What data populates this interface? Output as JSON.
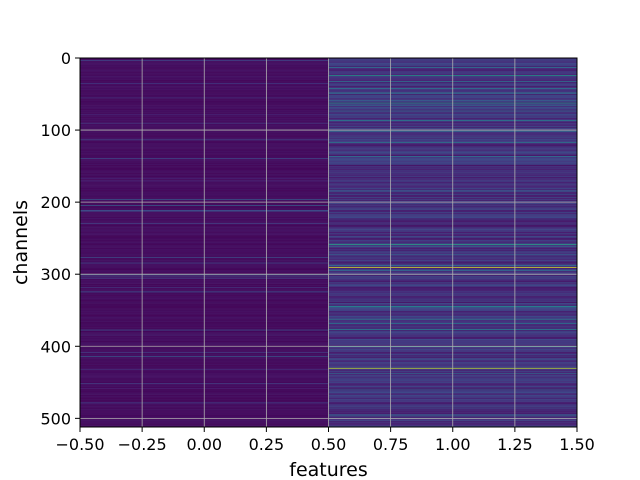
{
  "chart_data": {
    "type": "heatmap",
    "title": "",
    "xlabel": "features",
    "ylabel": "channels",
    "xlim": [
      -0.5,
      1.5
    ],
    "ylim": [
      512,
      0
    ],
    "y_inverted": true,
    "grid": true,
    "colormap": "viridis",
    "columns": [
      0,
      1
    ],
    "rows": 512,
    "xticks": [
      -0.5,
      -0.25,
      0.0,
      0.25,
      0.5,
      0.75,
      1.0,
      1.25,
      1.5
    ],
    "xtick_labels": [
      "−0.50",
      "−0.25",
      "0.00",
      "0.25",
      "0.50",
      "0.75",
      "1.00",
      "1.25",
      "1.50"
    ],
    "yticks": [
      0,
      100,
      200,
      300,
      400,
      500
    ],
    "ytick_labels": [
      "0",
      "100",
      "200",
      "300",
      "400",
      "500"
    ],
    "column_summary": [
      {
        "feature": 0,
        "typical_level": 0.05,
        "note": "uniformly low values, dark purple with faint teal streaks"
      },
      {
        "feature": 1,
        "typical_level": 0.2,
        "note": "stronger variation with several bright channels"
      }
    ],
    "notable_channels": [
      {
        "feature": 1,
        "channel": 24,
        "level": 0.55
      },
      {
        "feature": 1,
        "channel": 62,
        "level": 0.55
      },
      {
        "feature": 1,
        "channel": 86,
        "level": 0.45
      },
      {
        "feature": 1,
        "channel": 258,
        "level": 0.6
      },
      {
        "feature": 1,
        "channel": 290,
        "level": 0.95
      },
      {
        "feature": 1,
        "channel": 400,
        "level": 0.45
      },
      {
        "feature": 1,
        "channel": 430,
        "level": 0.9
      }
    ],
    "colors": {
      "cmap_low": "#440154",
      "cmap_mid": "#21918c",
      "cmap_high": "#fde725",
      "grid": "#b0b0b0"
    }
  }
}
